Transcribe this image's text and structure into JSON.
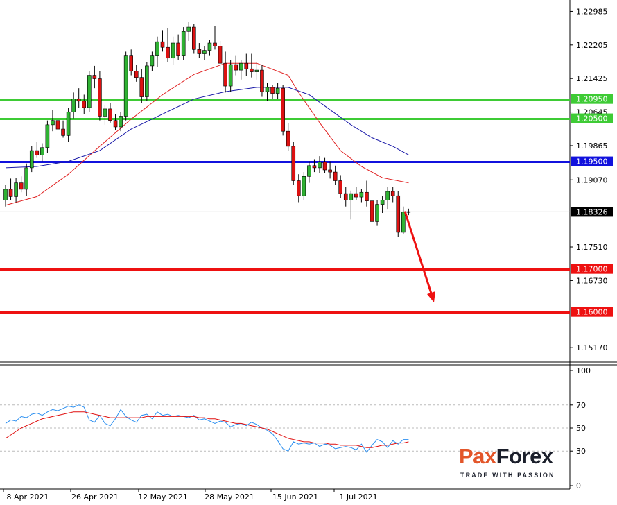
{
  "chart_data": [
    {
      "type": "candlestick",
      "title": "",
      "price_axis": {
        "ticks": [
          "1.22985",
          "1.22205",
          "1.21425",
          "1.20645",
          "1.19865",
          "1.19070",
          "1.17510",
          "1.16730",
          "1.15170"
        ],
        "ylim": [
          1.1485,
          1.2325
        ]
      },
      "date_axis": {
        "labels": [
          "8 Apr 2021",
          "26 Apr 2021",
          "12 May 2021",
          "28 May 2021",
          "15 Jun 2021",
          "1 Jul 2021"
        ]
      },
      "current_price": "1.18326",
      "levels": [
        {
          "label": "1.20950",
          "value": 1.2095,
          "color": "#3ecb35"
        },
        {
          "label": "1.20500",
          "value": 1.205,
          "color": "#3ecb35"
        },
        {
          "label": "1.19500",
          "value": 1.195,
          "color": "#1111dd"
        },
        {
          "label": "1.17000",
          "value": 1.17,
          "color": "#ee1111"
        },
        {
          "label": "1.16000",
          "value": 1.16,
          "color": "#ee1111"
        }
      ],
      "forecast_arrow": {
        "direction": "down",
        "from": 1.1834,
        "to": 1.1622,
        "color": "#ee1111"
      },
      "candles": [
        [
          1.186,
          1.1895,
          1.1845,
          1.1885
        ],
        [
          1.1885,
          1.191,
          1.186,
          1.1868
        ],
        [
          1.1868,
          1.1912,
          1.1855,
          1.19
        ],
        [
          1.19,
          1.1915,
          1.1878,
          1.1885
        ],
        [
          1.1885,
          1.1945,
          1.187,
          1.1935
        ],
        [
          1.1935,
          1.1985,
          1.1925,
          1.1975
        ],
        [
          1.1975,
          1.1995,
          1.1958,
          1.1965
        ],
        [
          1.1965,
          1.1992,
          1.195,
          1.1982
        ],
        [
          1.1982,
          1.2045,
          1.197,
          1.2035
        ],
        [
          1.2035,
          1.207,
          1.202,
          1.2045
        ],
        [
          1.2045,
          1.206,
          1.2015,
          1.2025
        ],
        [
          1.2025,
          1.2045,
          1.2005,
          1.201
        ],
        [
          1.201,
          1.2075,
          1.1995,
          1.2065
        ],
        [
          1.2065,
          1.211,
          1.205,
          1.2095
        ],
        [
          1.2095,
          1.212,
          1.2075,
          1.209
        ],
        [
          1.209,
          1.2105,
          1.206,
          1.2075
        ],
        [
          1.2075,
          1.216,
          1.2065,
          1.215
        ],
        [
          1.215,
          1.2172,
          1.212,
          1.2142
        ],
        [
          1.2142,
          1.216,
          1.2045,
          1.2055
        ],
        [
          1.2055,
          1.208,
          1.2035,
          1.2072
        ],
        [
          1.2072,
          1.2085,
          1.204,
          1.2045
        ],
        [
          1.2045,
          1.206,
          1.2022,
          1.203
        ],
        [
          1.203,
          1.2065,
          1.202,
          1.2055
        ],
        [
          1.2055,
          1.2205,
          1.2045,
          1.2195
        ],
        [
          1.2195,
          1.221,
          1.215,
          1.216
        ],
        [
          1.216,
          1.2175,
          1.2135,
          1.2145
        ],
        [
          1.2145,
          1.2165,
          1.2085,
          1.21
        ],
        [
          1.21,
          1.218,
          1.209,
          1.2172
        ],
        [
          1.2172,
          1.2205,
          1.216,
          1.2195
        ],
        [
          1.2195,
          1.224,
          1.217,
          1.2228
        ],
        [
          1.2228,
          1.2255,
          1.2205,
          1.2215
        ],
        [
          1.2215,
          1.226,
          1.218,
          1.219
        ],
        [
          1.219,
          1.224,
          1.2175,
          1.2225
        ],
        [
          1.2225,
          1.2245,
          1.2185,
          1.2195
        ],
        [
          1.2195,
          1.2262,
          1.2185,
          1.2252
        ],
        [
          1.2252,
          1.2275,
          1.223,
          1.2262
        ],
        [
          1.2262,
          1.227,
          1.22,
          1.221
        ],
        [
          1.221,
          1.2225,
          1.219,
          1.22
        ],
        [
          1.22,
          1.2218,
          1.2185,
          1.2208
        ],
        [
          1.2208,
          1.2232,
          1.2195,
          1.2225
        ],
        [
          1.2225,
          1.2265,
          1.221,
          1.2218
        ],
        [
          1.2218,
          1.223,
          1.2165,
          1.2178
        ],
        [
          1.2178,
          1.2205,
          1.211,
          1.2125
        ],
        [
          1.2125,
          1.2185,
          1.2112,
          1.2175
        ],
        [
          1.2175,
          1.2195,
          1.215,
          1.2162
        ],
        [
          1.2162,
          1.2185,
          1.214,
          1.2178
        ],
        [
          1.2178,
          1.22,
          1.2148,
          1.2165
        ],
        [
          1.2165,
          1.22,
          1.2145,
          1.2158
        ],
        [
          1.2158,
          1.218,
          1.214,
          1.2162
        ],
        [
          1.2162,
          1.2175,
          1.21,
          1.2112
        ],
        [
          1.2112,
          1.2132,
          1.209,
          1.2122
        ],
        [
          1.2122,
          1.2128,
          1.2095,
          1.2108
        ],
        [
          1.2108,
          1.2132,
          1.2095,
          1.212
        ],
        [
          1.212,
          1.2128,
          1.201,
          1.202
        ],
        [
          1.202,
          1.2038,
          1.1975,
          1.1985
        ],
        [
          1.1985,
          1.1995,
          1.1895,
          1.1905
        ],
        [
          1.1905,
          1.192,
          1.1855,
          1.187
        ],
        [
          1.187,
          1.1925,
          1.186,
          1.1915
        ],
        [
          1.1915,
          1.195,
          1.19,
          1.194
        ],
        [
          1.194,
          1.1955,
          1.1925,
          1.1935
        ],
        [
          1.1935,
          1.1962,
          1.1922,
          1.1948
        ],
        [
          1.1948,
          1.1958,
          1.1922,
          1.193
        ],
        [
          1.193,
          1.195,
          1.191,
          1.1925
        ],
        [
          1.1925,
          1.194,
          1.1895,
          1.1905
        ],
        [
          1.1905,
          1.1918,
          1.1865,
          1.1875
        ],
        [
          1.1875,
          1.189,
          1.1845,
          1.186
        ],
        [
          1.186,
          1.1882,
          1.1815,
          1.1875
        ],
        [
          1.1875,
          1.189,
          1.186,
          1.1867
        ],
        [
          1.1867,
          1.1885,
          1.1855,
          1.1878
        ],
        [
          1.1878,
          1.1905,
          1.1845,
          1.1858
        ],
        [
          1.1858,
          1.1872,
          1.18,
          1.181
        ],
        [
          1.181,
          1.186,
          1.18,
          1.185
        ],
        [
          1.185,
          1.187,
          1.183,
          1.186
        ],
        [
          1.186,
          1.189,
          1.1838,
          1.188
        ],
        [
          1.188,
          1.189,
          1.1855,
          1.187
        ],
        [
          1.187,
          1.188,
          1.1775,
          1.1785
        ],
        [
          1.1785,
          1.1845,
          1.178,
          1.1832
        ],
        [
          1.1832,
          1.184,
          1.1825,
          1.1833
        ]
      ],
      "ma_fast": [
        [
          0,
          1.1848
        ],
        [
          6,
          1.1868
        ],
        [
          12,
          1.192
        ],
        [
          18,
          1.1985
        ],
        [
          24,
          1.2048
        ],
        [
          30,
          1.2105
        ],
        [
          36,
          1.2152
        ],
        [
          42,
          1.2178
        ],
        [
          48,
          1.2178
        ],
        [
          54,
          1.215
        ],
        [
          56,
          1.211
        ],
        [
          60,
          1.204
        ],
        [
          64,
          1.1975
        ],
        [
          68,
          1.1938
        ],
        [
          72,
          1.1912
        ],
        [
          77,
          1.19
        ]
      ],
      "ma_slow": [
        [
          0,
          1.1935
        ],
        [
          6,
          1.1938
        ],
        [
          12,
          1.195
        ],
        [
          18,
          1.1975
        ],
        [
          24,
          1.2025
        ],
        [
          30,
          1.206
        ],
        [
          36,
          1.2095
        ],
        [
          42,
          1.2112
        ],
        [
          48,
          1.2122
        ],
        [
          54,
          1.2122
        ],
        [
          58,
          1.2105
        ],
        [
          62,
          1.207
        ],
        [
          66,
          1.2035
        ],
        [
          70,
          1.2005
        ],
        [
          74,
          1.1985
        ],
        [
          77,
          1.1965
        ]
      ]
    },
    {
      "type": "line",
      "indicator": "oscillator",
      "ylim": [
        0,
        100
      ],
      "y_ticks": [
        "100",
        "70",
        "50",
        "30",
        "0"
      ],
      "levels": [
        70,
        50,
        30
      ],
      "series": [
        {
          "color": "#2b8ff0",
          "values": [
            54,
            57,
            56,
            60,
            59,
            62,
            63,
            61,
            64,
            66,
            65,
            67,
            69,
            68,
            70,
            68,
            57,
            55,
            61,
            54,
            52,
            58,
            66,
            60,
            57,
            55,
            61,
            62,
            58,
            64,
            61,
            62,
            60,
            61,
            60,
            59,
            61,
            57,
            58,
            56,
            54,
            56,
            55,
            51,
            53,
            54,
            52,
            55,
            53,
            50,
            48,
            45,
            39,
            32,
            30,
            38,
            36,
            37,
            36,
            37,
            34,
            36,
            35,
            32,
            33,
            34,
            33,
            31,
            36,
            29,
            35,
            40,
            38,
            33,
            39,
            36,
            40,
            40
          ]
        },
        {
          "color": "#e01010",
          "values": [
            41,
            44,
            47,
            50,
            52,
            54,
            56,
            58,
            59,
            60,
            61,
            62,
            63,
            64,
            64,
            64,
            63,
            62,
            61,
            60,
            59,
            59,
            59,
            59,
            59,
            59,
            59,
            60,
            60,
            60,
            60,
            60,
            60,
            60,
            60,
            60,
            60,
            59,
            59,
            58,
            58,
            57,
            56,
            55,
            54,
            54,
            53,
            52,
            51,
            50,
            49,
            47,
            45,
            43,
            41,
            40,
            39,
            38,
            38,
            37,
            37,
            37,
            36,
            36,
            35,
            35,
            35,
            35,
            34,
            33,
            33,
            34,
            35,
            35,
            36,
            37,
            37,
            38
          ]
        }
      ]
    }
  ],
  "brand": {
    "logo_left": "Pa",
    "logo_x": "x",
    "logo_right": "Forex",
    "tagline": "TRADE WITH PASSION"
  },
  "colors": {
    "bull": "#2fb233",
    "bear": "#dd1111",
    "axis": "#000000",
    "grid": "#bbbbbb",
    "marker": "#000000"
  }
}
